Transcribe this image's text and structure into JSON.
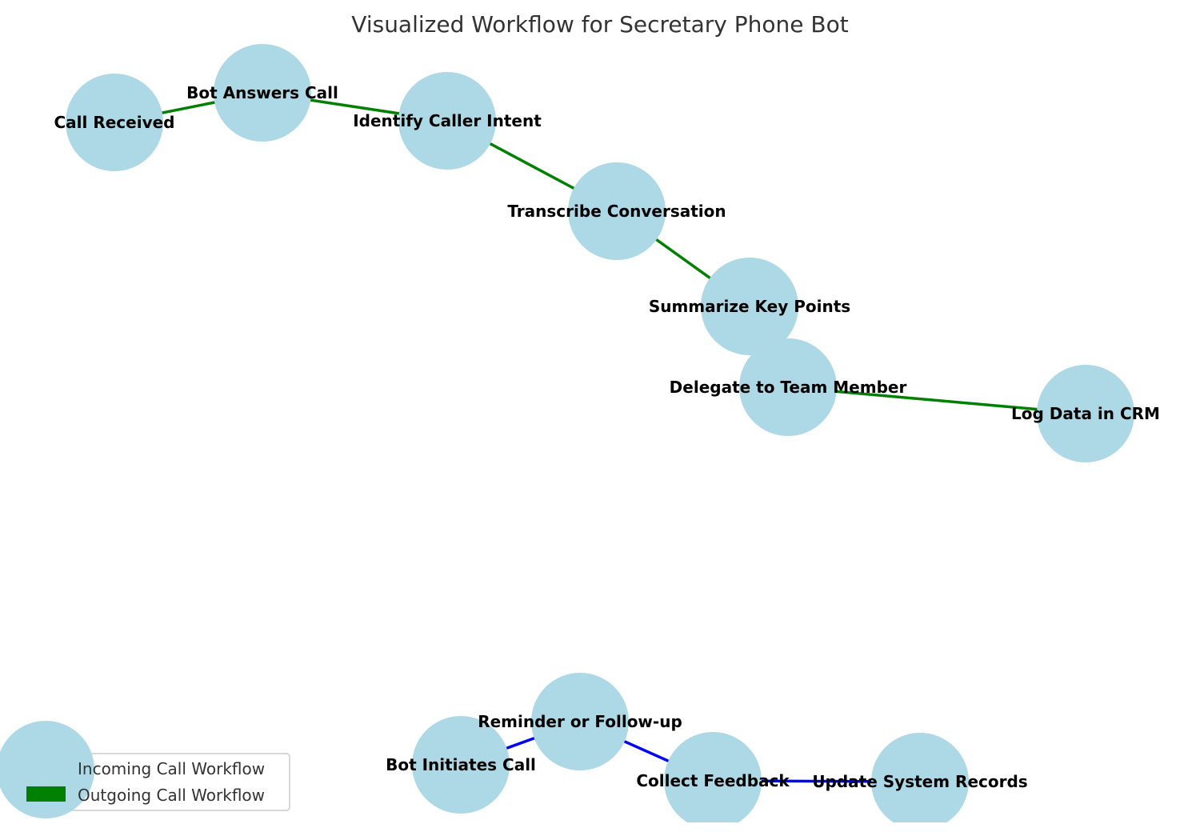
{
  "title": "Visualized Workflow for Secretary Phone Bot",
  "colors": {
    "node": "#add8e6",
    "incoming_edge": "#008000",
    "outgoing_edge": "#0000ff"
  },
  "nodes": [
    "Call Received",
    "Bot Answers Call",
    "Identify Caller Intent",
    "Transcribe Conversation",
    "Summarize Key Points",
    "Delegate to Team Member",
    "Log Data in CRM",
    "Bot Initiates Call",
    "Reminder or Follow-up",
    "Collect Feedback",
    "Update System Records"
  ],
  "edges": [
    {
      "from": "Call Received",
      "to": "Bot Answers Call",
      "workflow": "incoming"
    },
    {
      "from": "Bot Answers Call",
      "to": "Identify Caller Intent",
      "workflow": "incoming"
    },
    {
      "from": "Identify Caller Intent",
      "to": "Transcribe Conversation",
      "workflow": "incoming"
    },
    {
      "from": "Transcribe Conversation",
      "to": "Summarize Key Points",
      "workflow": "incoming"
    },
    {
      "from": "Summarize Key Points",
      "to": "Delegate to Team Member",
      "workflow": "incoming"
    },
    {
      "from": "Delegate to Team Member",
      "to": "Log Data in CRM",
      "workflow": "incoming"
    },
    {
      "from": "Bot Initiates Call",
      "to": "Reminder or Follow-up",
      "workflow": "outgoing"
    },
    {
      "from": "Reminder or Follow-up",
      "to": "Collect Feedback",
      "workflow": "outgoing"
    },
    {
      "from": "Collect Feedback",
      "to": "Update System Records",
      "workflow": "outgoing"
    }
  ],
  "legend": {
    "items": [
      "Incoming Call Workflow",
      "Outgoing Call Workflow"
    ]
  }
}
